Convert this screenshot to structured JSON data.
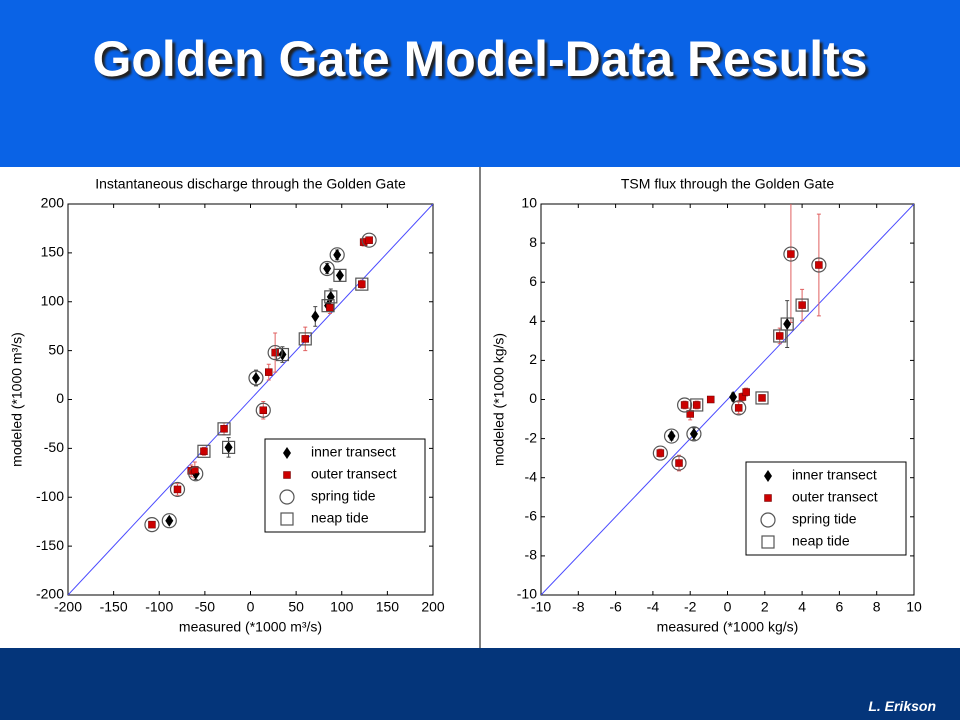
{
  "slide_title": "Golden Gate Model-Data Results",
  "author": "L. Erikson",
  "chart_data": [
    {
      "type": "scatter",
      "title": "Instantaneous discharge through the Golden Gate",
      "xlabel": "measured (*1000 m³/s)",
      "ylabel": "modeled (*1000 m³/s)",
      "xlim": [
        -200,
        200
      ],
      "ylim": [
        -200,
        200
      ],
      "xticks": [
        -200,
        -150,
        -100,
        -50,
        0,
        50,
        100,
        150,
        200
      ],
      "yticks": [
        -200,
        -150,
        -100,
        -50,
        0,
        50,
        100,
        150,
        200
      ],
      "legend": "lower right",
      "series": [
        {
          "name": "inner transect",
          "marker": "diamond",
          "color": "#000000",
          "x": [
            -89,
            -60,
            -24,
            6,
            35,
            71,
            84,
            88,
            95,
            98,
            85
          ],
          "values": [
            -124,
            -76,
            -49,
            22,
            46,
            85,
            134,
            105,
            148,
            127,
            96
          ],
          "errors": [
            3,
            6,
            10,
            8,
            8,
            10,
            5,
            8,
            5,
            6,
            6
          ]
        },
        {
          "name": "outer transect",
          "marker": "square",
          "color": "#cc0000",
          "x": [
            -108,
            -80,
            -65,
            -61,
            -51,
            -29,
            14,
            20,
            27,
            60,
            87,
            122,
            124,
            130
          ],
          "values": [
            -128,
            -92,
            -73,
            -72,
            -53,
            -30,
            -11,
            28,
            48,
            62,
            94,
            118,
            161,
            163
          ],
          "errors": [
            3,
            6,
            6,
            8,
            4,
            6,
            9,
            8,
            20,
            12,
            6,
            4,
            4,
            3
          ]
        },
        {
          "name": "spring tide",
          "marker": "circle",
          "color": "#555555",
          "x": [
            -108,
            -89,
            -80,
            -60,
            6,
            14,
            27,
            84,
            95,
            130
          ],
          "values": [
            -128,
            -124,
            -92,
            -76,
            22,
            -11,
            48,
            134,
            148,
            163
          ]
        },
        {
          "name": "neap tide",
          "marker": "open-square",
          "color": "#555555",
          "x": [
            -51,
            -24,
            -29,
            35,
            60,
            88,
            98,
            122,
            85
          ],
          "values": [
            -53,
            -49,
            -30,
            46,
            62,
            105,
            127,
            118,
            96
          ]
        }
      ]
    },
    {
      "type": "scatter",
      "title": "TSM flux through the Golden Gate",
      "xlabel": "measured (*1000 kg/s)",
      "ylabel": "modeled (*1000 kg/s)",
      "xlim": [
        -10,
        10
      ],
      "ylim": [
        -10,
        10
      ],
      "xticks": [
        -10,
        -8,
        -6,
        -4,
        -2,
        0,
        2,
        4,
        6,
        8,
        10
      ],
      "yticks": [
        -10,
        -8,
        -6,
        -4,
        -2,
        0,
        2,
        4,
        6,
        8,
        10
      ],
      "legend": "lower right",
      "series": [
        {
          "name": "inner transect",
          "marker": "diamond",
          "color": "#000000",
          "x": [
            -3.0,
            -1.8,
            0.3,
            3.2
          ],
          "values": [
            -1.87,
            -1.76,
            0.13,
            3.86
          ],
          "errors": [
            0.2,
            0.3,
            0.2,
            1.2
          ]
        },
        {
          "name": "outer transect",
          "marker": "square",
          "color": "#cc0000",
          "x": [
            -3.6,
            -2.6,
            -2.3,
            -2.0,
            -1.65,
            -0.9,
            0.6,
            0.8,
            1.0,
            1.85,
            2.8,
            3.4,
            4.0,
            4.9
          ],
          "values": [
            -2.74,
            -3.25,
            -0.28,
            -0.74,
            -0.28,
            0,
            -0.43,
            0.13,
            0.38,
            0.08,
            3.25,
            7.44,
            4.83,
            6.88
          ],
          "errors": [
            0.2,
            0.4,
            0.2,
            0.3,
            0.2,
            0.1,
            0.3,
            0.2,
            0.2,
            0.1,
            0.4,
            3.5,
            0.8,
            2.6
          ]
        },
        {
          "name": "spring tide",
          "marker": "circle",
          "color": "#555555",
          "x": [
            -3.6,
            -3.0,
            -2.6,
            -2.3,
            -1.8,
            0.6,
            3.4,
            4.9
          ],
          "values": [
            -2.74,
            -1.87,
            -3.25,
            -0.28,
            -1.76,
            -0.43,
            7.44,
            6.88
          ]
        },
        {
          "name": "neap tide",
          "marker": "open-square",
          "color": "#555555",
          "x": [
            -1.65,
            1.85,
            2.8,
            3.2,
            4.0
          ],
          "values": [
            -0.28,
            0.08,
            3.25,
            3.86,
            4.83
          ]
        }
      ]
    }
  ]
}
